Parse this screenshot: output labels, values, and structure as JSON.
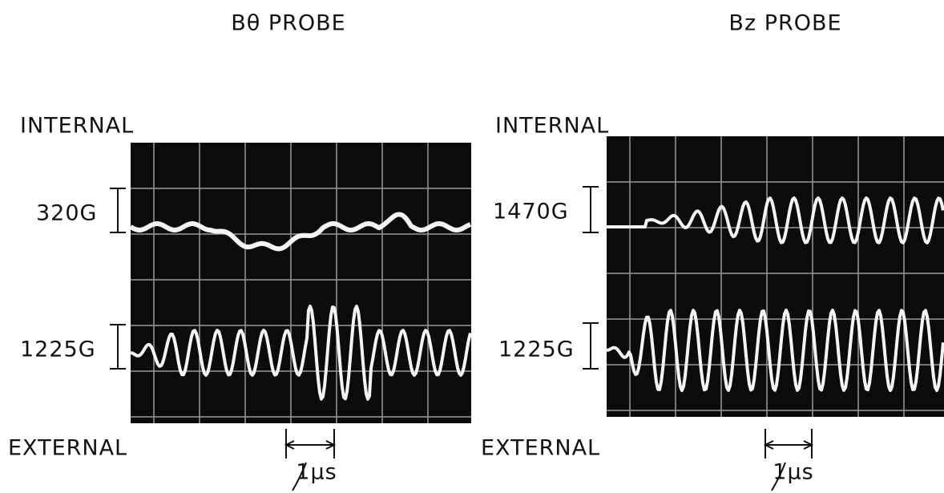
{
  "panels": [
    {
      "title": "Bθ PROBE",
      "top_label": "INTERNAL",
      "bottom_label": "EXTERNAL",
      "scale_top": "320G",
      "scale_bottom": "1225G",
      "time_scale": "1μs"
    },
    {
      "title": "Bz PROBE",
      "top_label": "INTERNAL",
      "bottom_label": "EXTERNAL",
      "scale_top": "1470G",
      "scale_bottom": "1225G",
      "time_scale": "1μs"
    }
  ]
}
